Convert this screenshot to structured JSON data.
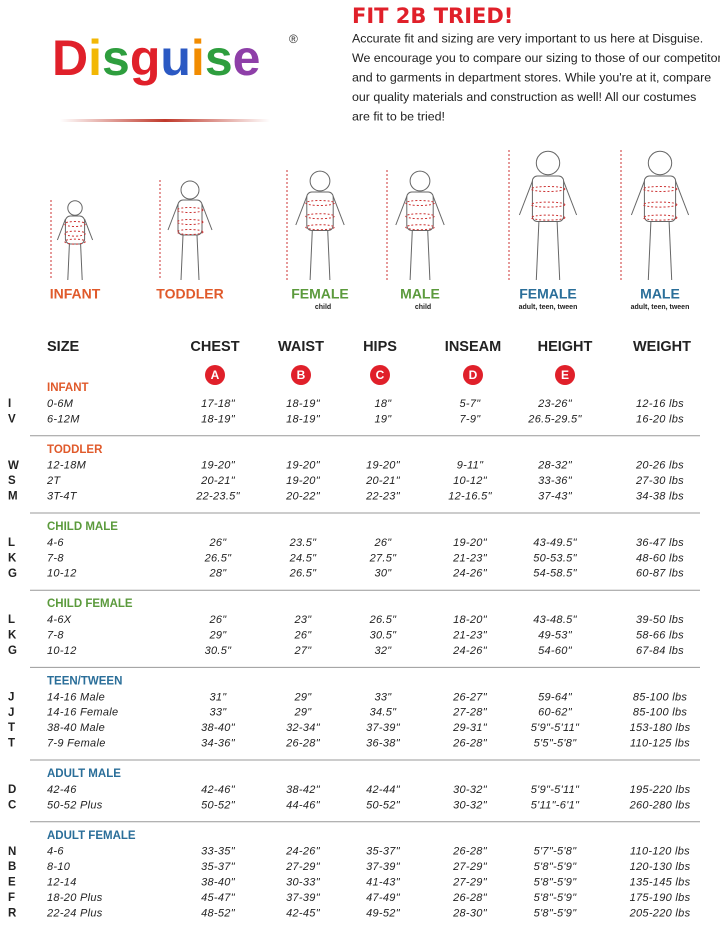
{
  "header": {
    "logo": "Disguise",
    "logo_mark": "®",
    "title": "FIT 2B TRIED!",
    "intro_lines": [
      "Accurate fit and sizing are very important to us here at Disguise.",
      "We encourage you to compare our sizing to those of our competitors",
      "and to garments in department stores. While you're at it, compare",
      "our quality materials and construction as well! All our costumes",
      "are fit to be tried!"
    ]
  },
  "figures": [
    {
      "label": "INFANT"
    },
    {
      "label": "TODDLER"
    },
    {
      "label": "FEMALE",
      "sublabel": "child"
    },
    {
      "label": "MALE",
      "sublabel": "child"
    },
    {
      "label": "FEMALE",
      "sublabel": "adult, teen, tween"
    },
    {
      "label": "MALE",
      "sublabel": "adult, teen, tween"
    }
  ],
  "table": {
    "columns": [
      "SIZE",
      "CHEST",
      "WAIST",
      "HIPS",
      "INSEAM",
      "HEIGHT",
      "WEIGHT"
    ],
    "badges": [
      "A",
      "B",
      "C",
      "D",
      "E"
    ],
    "sections": [
      {
        "name": "INFANT",
        "rows": [
          [
            "I",
            "0-6M",
            "17-18\"",
            "18-19\"",
            "18\"",
            "5-7\"",
            "23-26\"",
            "12-16 lbs"
          ],
          [
            "V",
            "6-12M",
            "18-19\"",
            "18-19\"",
            "19\"",
            "7-9\"",
            "26.5-29.5\"",
            "16-20 lbs"
          ]
        ]
      },
      {
        "name": "TODDLER",
        "rows": [
          [
            "W",
            "12-18M",
            "19-20\"",
            "19-20\"",
            "19-20\"",
            "9-11\"",
            "28-32\"",
            "20-26 lbs"
          ],
          [
            "S",
            "2T",
            "20-21\"",
            "19-20\"",
            "20-21\"",
            "10-12\"",
            "33-36\"",
            "27-30 lbs"
          ],
          [
            "M",
            "3T-4T",
            "22-23.5\"",
            "20-22\"",
            "22-23\"",
            "12-16.5\"",
            "37-43\"",
            "34-38 lbs"
          ]
        ]
      },
      {
        "name": "CHILD MALE",
        "rows": [
          [
            "L",
            "4-6",
            "26\"",
            "23.5\"",
            "26\"",
            "19-20\"",
            "43-49.5\"",
            "36-47 lbs"
          ],
          [
            "K",
            "7-8",
            "26.5\"",
            "24.5\"",
            "27.5\"",
            "21-23\"",
            "50-53.5\"",
            "48-60 lbs"
          ],
          [
            "G",
            "10-12",
            "28\"",
            "26.5\"",
            "30\"",
            "24-26\"",
            "54-58.5\"",
            "60-87 lbs"
          ]
        ]
      },
      {
        "name": "CHILD FEMALE",
        "rows": [
          [
            "L",
            "4-6X",
            "26\"",
            "23\"",
            "26.5\"",
            "18-20\"",
            "43-48.5\"",
            "39-50 lbs"
          ],
          [
            "K",
            "7-8",
            "29\"",
            "26\"",
            "30.5\"",
            "21-23\"",
            "49-53\"",
            "58-66 lbs"
          ],
          [
            "G",
            "10-12",
            "30.5\"",
            "27\"",
            "32\"",
            "24-26\"",
            "54-60\"",
            "67-84 lbs"
          ]
        ]
      },
      {
        "name": "TEEN/TWEEN",
        "rows": [
          [
            "J",
            "14-16 Male",
            "31\"",
            "29\"",
            "33\"",
            "26-27\"",
            "59-64\"",
            "85-100 lbs"
          ],
          [
            "J",
            "14-16 Female",
            "33\"",
            "29\"",
            "34.5\"",
            "27-28\"",
            "60-62\"",
            "85-100 lbs"
          ],
          [
            "T",
            "38-40 Male",
            "38-40\"",
            "32-34\"",
            "37-39\"",
            "29-31\"",
            "5'9\"-5'11\"",
            "153-180 lbs"
          ],
          [
            "T",
            "7-9 Female",
            "34-36\"",
            "26-28\"",
            "36-38\"",
            "26-28\"",
            "5'5\"-5'8\"",
            "110-125 lbs"
          ]
        ]
      },
      {
        "name": "ADULT MALE",
        "rows": [
          [
            "D",
            "42-46",
            "42-46\"",
            "38-42\"",
            "42-44\"",
            "30-32\"",
            "5'9\"-5'11\"",
            "195-220 lbs"
          ],
          [
            "C",
            "50-52 Plus",
            "50-52\"",
            "44-46\"",
            "50-52\"",
            "30-32\"",
            "5'11\"-6'1\"",
            "260-280 lbs"
          ]
        ]
      },
      {
        "name": "ADULT FEMALE",
        "rows": [
          [
            "N",
            "4-6",
            "33-35\"",
            "24-26\"",
            "35-37\"",
            "26-28\"",
            "5'7\"-5'8\"",
            "110-120 lbs"
          ],
          [
            "B",
            "8-10",
            "35-37\"",
            "27-29\"",
            "37-39\"",
            "27-29\"",
            "5'8\"-5'9\"",
            "120-130 lbs"
          ],
          [
            "E",
            "12-14",
            "38-40\"",
            "30-33\"",
            "41-43\"",
            "27-29\"",
            "5'8\"-5'9\"",
            "135-145 lbs"
          ],
          [
            "F",
            "18-20 Plus",
            "45-47\"",
            "37-39\"",
            "47-49\"",
            "26-28\"",
            "5'8\"-5'9\"",
            "175-190 lbs"
          ],
          [
            "R",
            "22-24 Plus",
            "48-52\"",
            "42-45\"",
            "49-52\"",
            "28-30\"",
            "5'8\"-5'9\"",
            "205-220 lbs"
          ]
        ]
      }
    ]
  }
}
